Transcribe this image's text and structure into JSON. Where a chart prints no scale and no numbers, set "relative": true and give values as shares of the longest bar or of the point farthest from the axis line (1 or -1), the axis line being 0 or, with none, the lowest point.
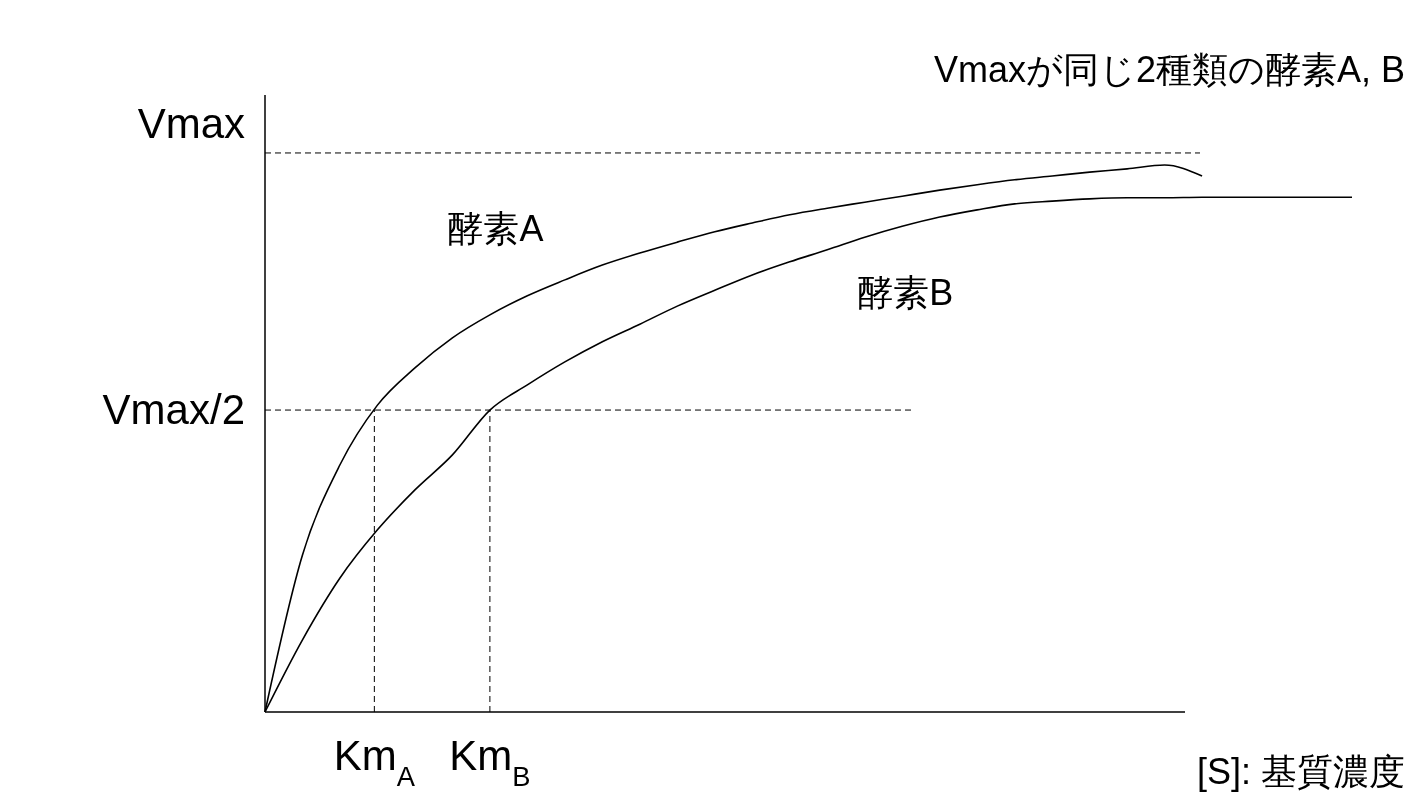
{
  "chart_data": {
    "type": "line",
    "title": "Vmaxが同じ2種類の酵素A, B",
    "xlabel": "[S]: 基質濃度",
    "relative": true,
    "categories": [
      null,
      null,
      null,
      null,
      null,
      null,
      null,
      null,
      null,
      null,
      null,
      null,
      null,
      null,
      null,
      null,
      null,
      null,
      null,
      null,
      null,
      null,
      null,
      null,
      null,
      null,
      null,
      null,
      null,
      null
    ],
    "annotations": [
      {
        "text": "Km$_{A}$",
        "y": 0.552
      },
      {
        "text": "Km$_{B}$",
        "y": 0.552
      }
    ],
    "series": [
      {
        "name": "酵素A",
        "color": "#000000",
        "values": [
          0,
          0.287,
          0.452,
          0.561,
          0.629,
          0.684,
          0.726,
          0.761,
          0.79,
          0.817,
          0.839,
          0.859,
          0.878,
          0.894,
          0.909,
          0.921,
          0.932,
          0.943,
          0.954,
          0.964,
          0.973,
          0.98,
          0.987,
          0.993,
          1,
          0.98,
          null,
          null,
          null,
          null
        ]
      },
      {
        "name": "酵素B",
        "color": "#000000",
        "values": [
          0,
          0.132,
          0.245,
          0.333,
          0.406,
          0.47,
          0.552,
          0.598,
          0.64,
          0.677,
          0.709,
          0.742,
          0.771,
          0.799,
          0.823,
          0.845,
          0.868,
          0.888,
          0.905,
          0.918,
          0.929,
          0.934,
          0.938,
          0.94,
          0.94,
          0.941,
          0.941,
          0.941,
          0.941,
          0.941
        ]
      }
    ],
    "ref_lines": [
      {
        "axis": "y",
        "value": 1.022,
        "label": "Vmax",
        "line_style": "dashed"
      },
      {
        "axis": "y",
        "value": 0.552,
        "label": "Vmax/2",
        "line_style": "dashed"
      }
    ],
    "legend": false,
    "marker": "none",
    "line_style": "solid"
  }
}
